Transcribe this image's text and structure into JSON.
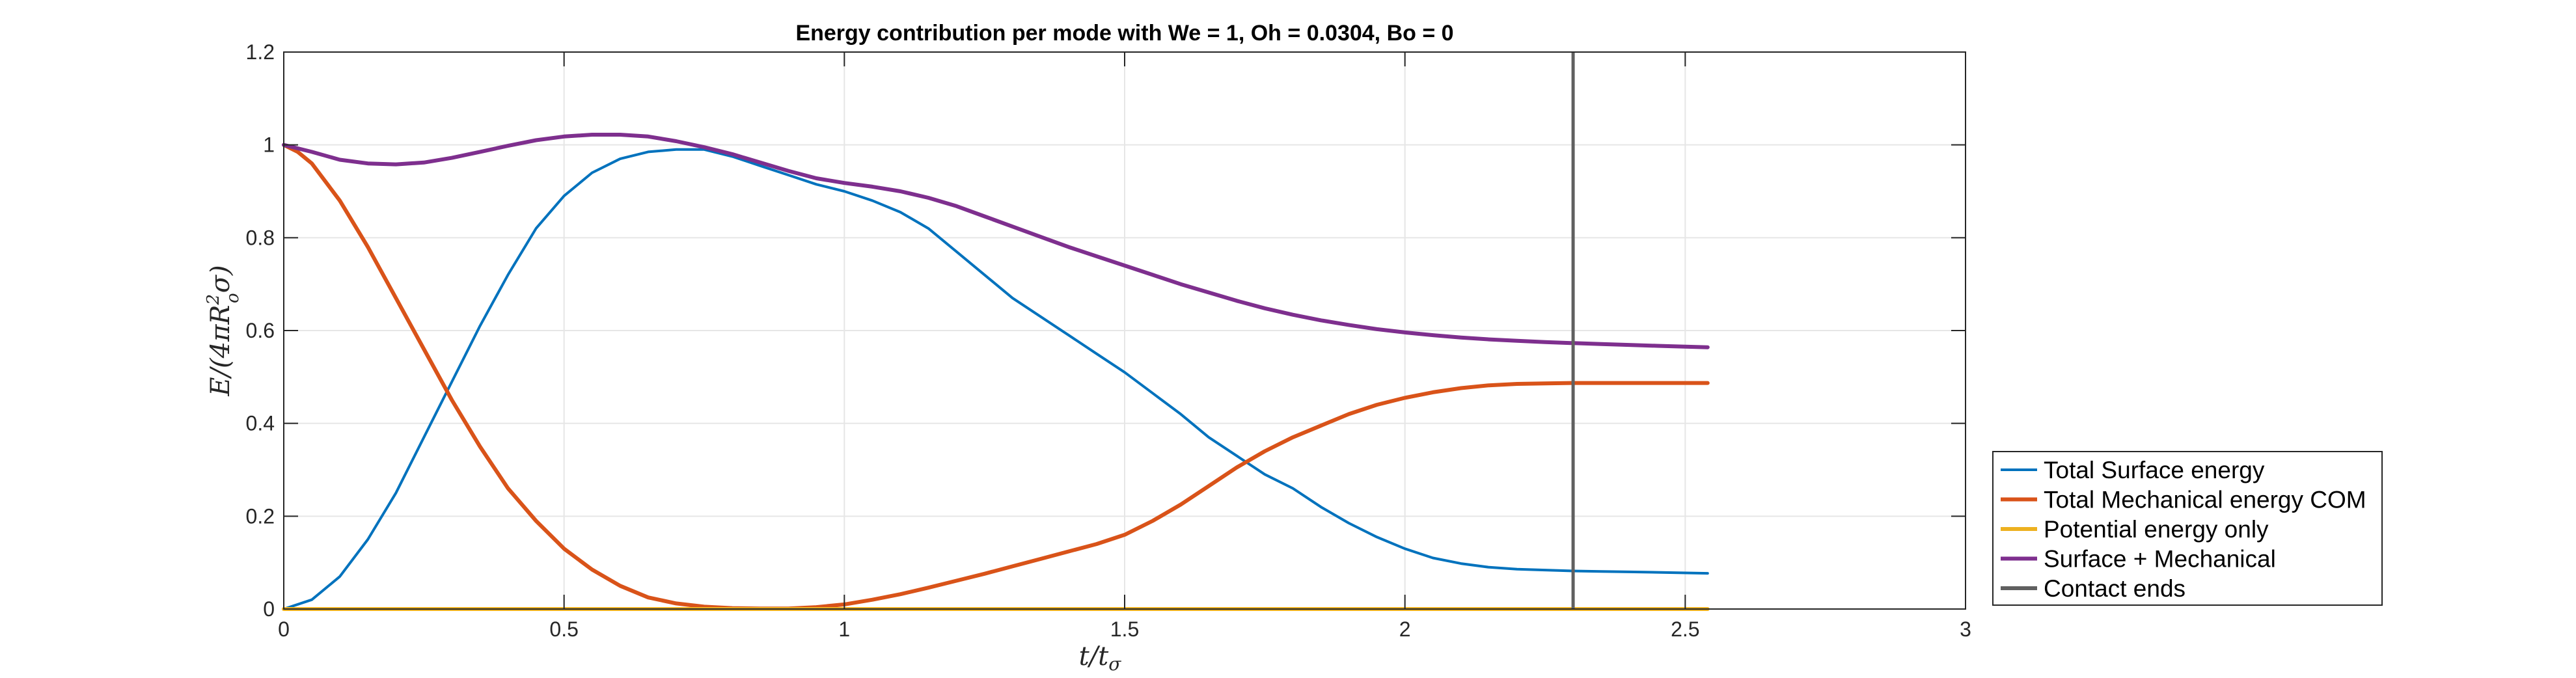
{
  "chart_data": {
    "type": "line",
    "title": "Energy contribution per mode with We = 1, Oh = 0.0304, Bo = 0",
    "xlabel": "t/t",
    "xlabel_sub": "σ",
    "ylabel": "E/(4πR",
    "ylabel_sub": "o",
    "ylabel_sup": "2",
    "ylabel_tail": "σ)",
    "xlim": [
      0,
      3
    ],
    "ylim": [
      0,
      1.2
    ],
    "xticks": [
      0,
      0.5,
      1,
      1.5,
      2,
      2.5,
      3
    ],
    "xtick_labels": [
      "0",
      "0.5",
      "1",
      "1.5",
      "2",
      "2.5",
      "3"
    ],
    "yticks": [
      0,
      0.2,
      0.4,
      0.6,
      0.8,
      1,
      1.2
    ],
    "ytick_labels": [
      "0",
      "0.2",
      "0.4",
      "0.6",
      "0.8",
      "1",
      "1.2"
    ],
    "grid": true,
    "legend_position": "bottom-right-outside",
    "series": [
      {
        "name": "Total Surface energy",
        "color": "#0072BD",
        "x": [
          0,
          0.05,
          0.1,
          0.15,
          0.2,
          0.25,
          0.3,
          0.35,
          0.4,
          0.45,
          0.5,
          0.55,
          0.6,
          0.65,
          0.7,
          0.75,
          0.8,
          0.85,
          0.9,
          0.95,
          1.0,
          1.05,
          1.1,
          1.15,
          1.2,
          1.25,
          1.3,
          1.35,
          1.4,
          1.45,
          1.5,
          1.55,
          1.6,
          1.65,
          1.7,
          1.75,
          1.8,
          1.85,
          1.9,
          1.95,
          2.0,
          2.05,
          2.1,
          2.15,
          2.2,
          2.25,
          2.3,
          2.35,
          2.4,
          2.45,
          2.54
        ],
        "y": [
          0.0,
          0.02,
          0.07,
          0.15,
          0.25,
          0.37,
          0.49,
          0.61,
          0.72,
          0.82,
          0.89,
          0.94,
          0.97,
          0.985,
          0.99,
          0.99,
          0.975,
          0.955,
          0.935,
          0.915,
          0.9,
          0.88,
          0.855,
          0.82,
          0.77,
          0.72,
          0.67,
          0.63,
          0.59,
          0.55,
          0.51,
          0.465,
          0.42,
          0.37,
          0.33,
          0.29,
          0.26,
          0.22,
          0.185,
          0.155,
          0.13,
          0.11,
          0.098,
          0.09,
          0.086,
          0.084,
          0.082,
          0.081,
          0.08,
          0.079,
          0.077
        ]
      },
      {
        "name": "Total Mechanical energy COM",
        "color": "#D95319",
        "x": [
          0,
          0.025,
          0.05,
          0.1,
          0.15,
          0.2,
          0.25,
          0.3,
          0.35,
          0.4,
          0.45,
          0.5,
          0.55,
          0.6,
          0.65,
          0.7,
          0.75,
          0.8,
          0.85,
          0.9,
          0.95,
          1.0,
          1.05,
          1.1,
          1.15,
          1.2,
          1.25,
          1.3,
          1.35,
          1.4,
          1.45,
          1.5,
          1.55,
          1.6,
          1.65,
          1.7,
          1.75,
          1.8,
          1.85,
          1.9,
          1.95,
          2.0,
          2.05,
          2.1,
          2.15,
          2.2,
          2.25,
          2.3,
          2.35,
          2.4,
          2.45,
          2.54
        ],
        "y": [
          1.0,
          0.985,
          0.96,
          0.88,
          0.78,
          0.67,
          0.56,
          0.45,
          0.35,
          0.26,
          0.19,
          0.13,
          0.085,
          0.05,
          0.025,
          0.012,
          0.005,
          0.002,
          0.001,
          0.001,
          0.004,
          0.01,
          0.02,
          0.032,
          0.046,
          0.061,
          0.076,
          0.092,
          0.108,
          0.124,
          0.14,
          0.16,
          0.19,
          0.225,
          0.265,
          0.305,
          0.34,
          0.37,
          0.395,
          0.42,
          0.44,
          0.455,
          0.467,
          0.476,
          0.482,
          0.485,
          0.486,
          0.487,
          0.487,
          0.487,
          0.487,
          0.487
        ]
      },
      {
        "name": "Potential energy only",
        "color": "#EDB120",
        "x": [
          0,
          2.54
        ],
        "y": [
          0,
          0
        ]
      },
      {
        "name": "Surface + Mechanical",
        "color": "#7E2F8E",
        "x": [
          0,
          0.05,
          0.1,
          0.15,
          0.2,
          0.25,
          0.3,
          0.35,
          0.4,
          0.45,
          0.5,
          0.55,
          0.6,
          0.65,
          0.7,
          0.75,
          0.8,
          0.85,
          0.9,
          0.95,
          1.0,
          1.05,
          1.1,
          1.15,
          1.2,
          1.25,
          1.3,
          1.35,
          1.4,
          1.45,
          1.5,
          1.55,
          1.6,
          1.65,
          1.7,
          1.75,
          1.8,
          1.85,
          1.9,
          1.95,
          2.0,
          2.05,
          2.1,
          2.15,
          2.2,
          2.25,
          2.3,
          2.35,
          2.4,
          2.45,
          2.54
        ],
        "y": [
          1.0,
          0.985,
          0.968,
          0.96,
          0.958,
          0.962,
          0.972,
          0.985,
          0.998,
          1.01,
          1.018,
          1.022,
          1.022,
          1.018,
          1.008,
          0.995,
          0.98,
          0.962,
          0.944,
          0.928,
          0.918,
          0.91,
          0.9,
          0.886,
          0.868,
          0.846,
          0.824,
          0.802,
          0.78,
          0.76,
          0.74,
          0.72,
          0.7,
          0.682,
          0.664,
          0.648,
          0.634,
          0.622,
          0.612,
          0.603,
          0.596,
          0.59,
          0.585,
          0.581,
          0.578,
          0.575,
          0.573,
          0.571,
          0.569,
          0.567,
          0.564
        ]
      },
      {
        "name": "Contact ends",
        "color": "#606060",
        "type": "vline",
        "x": 2.3
      }
    ]
  }
}
